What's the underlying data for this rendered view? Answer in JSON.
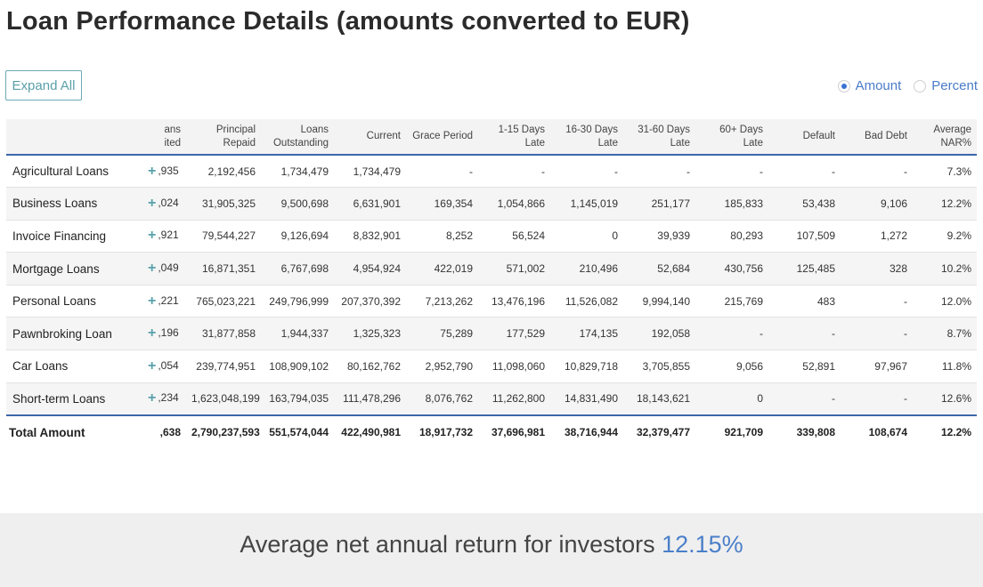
{
  "title": "Loan Performance Details (amounts converted to EUR)",
  "toolbar": {
    "expand_label": "Expand All"
  },
  "view_toggle": {
    "amount_label": "Amount",
    "percent_label": "Percent",
    "selected": "Amount"
  },
  "table": {
    "headers": [
      "",
      "ans\nited",
      "Principal\nRepaid",
      "Loans\nOutstanding",
      "Current",
      "Grace Period",
      "1-15 Days\nLate",
      "16-30 Days\nLate",
      "31-60 Days\nLate",
      "60+ Days\nLate",
      "Default",
      "Bad Debt",
      "Average\nNAR%"
    ],
    "rows": [
      {
        "name": "Agricultural Loans",
        "cells": [
          ",935",
          "2,192,456",
          "1,734,479",
          "1,734,479",
          "-",
          "-",
          "-",
          "-",
          "-",
          "-",
          "-",
          "7.3%"
        ]
      },
      {
        "name": "Business Loans",
        "cells": [
          ",024",
          "31,905,325",
          "9,500,698",
          "6,631,901",
          "169,354",
          "1,054,866",
          "1,145,019",
          "251,177",
          "185,833",
          "53,438",
          "9,106",
          "12.2%"
        ]
      },
      {
        "name": "Invoice Financing",
        "cells": [
          ",921",
          "79,544,227",
          "9,126,694",
          "8,832,901",
          "8,252",
          "56,524",
          "0",
          "39,939",
          "80,293",
          "107,509",
          "1,272",
          "9.2%"
        ]
      },
      {
        "name": "Mortgage Loans",
        "cells": [
          ",049",
          "16,871,351",
          "6,767,698",
          "4,954,924",
          "422,019",
          "571,002",
          "210,496",
          "52,684",
          "430,756",
          "125,485",
          "328",
          "10.2%"
        ]
      },
      {
        "name": "Personal Loans",
        "cells": [
          ",221",
          "765,023,221",
          "249,796,999",
          "207,370,392",
          "7,213,262",
          "13,476,196",
          "11,526,082",
          "9,994,140",
          "215,769",
          "483",
          "-",
          "12.0%"
        ]
      },
      {
        "name": "Pawnbroking Loan",
        "cells": [
          ",196",
          "31,877,858",
          "1,944,337",
          "1,325,323",
          "75,289",
          "177,529",
          "174,135",
          "192,058",
          "-",
          "-",
          "-",
          "8.7%"
        ]
      },
      {
        "name": "Car Loans",
        "cells": [
          ",054",
          "239,774,951",
          "108,909,102",
          "80,162,762",
          "2,952,790",
          "11,098,060",
          "10,829,718",
          "3,705,855",
          "9,056",
          "52,891",
          "97,967",
          "11.8%"
        ]
      },
      {
        "name": "Short-term Loans",
        "cells": [
          ",234",
          "1,623,048,199",
          "163,794,035",
          "111,478,296",
          "8,076,762",
          "11,262,800",
          "14,831,490",
          "18,143,621",
          "0",
          "-",
          "-",
          "12.6%"
        ]
      }
    ],
    "total": {
      "name": "Total Amount",
      "cells": [
        ",638",
        "2,790,237,593",
        "551,574,044",
        "422,490,981",
        "18,917,732",
        "37,696,981",
        "38,716,944",
        "32,379,477",
        "921,709",
        "339,808",
        "108,674",
        "12.2%"
      ]
    },
    "expand_icon": "plus-icon"
  },
  "footer": {
    "text": "Average net annual return for investors ",
    "value": "12.15%"
  }
}
